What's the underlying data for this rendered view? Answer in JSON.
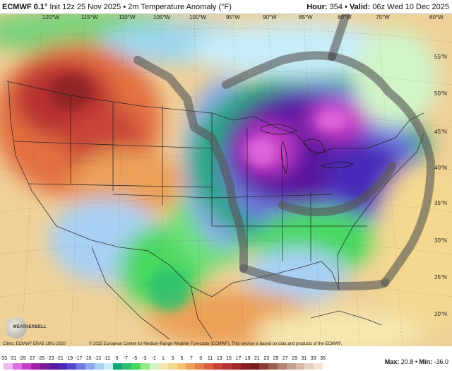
{
  "header": {
    "model": "ECMWF 0.1°",
    "init": "Init 12z 25 Nov 2025",
    "separator": "•",
    "product": "2m Temperature Anomaly (°F)",
    "hour_label": "Hour:",
    "hour_value": "354",
    "valid_label": "Valid:",
    "valid_value": "06z Wed 10 Dec 2025"
  },
  "map": {
    "longitude_labels": [
      "120°W",
      "115°W",
      "110°W",
      "105°W",
      "100°W",
      "95°W",
      "90°W",
      "85°W",
      "80°W",
      "75°W",
      "60°W"
    ],
    "latitude_labels": [
      "55°N",
      "50°N",
      "45°N",
      "40°N",
      "35°N",
      "30°N",
      "25°N",
      "20°N"
    ],
    "overlay_color": "#555555",
    "overlay_description": "hand-drawn dark gray annotation strokes"
  },
  "footer": {
    "climo": "Climo: ECMWF ERA5 1991-2020",
    "copyright": "© 2025 European Centre for Medium-Range Weather Forecasts (ECMWF). This service is based on data and products of the ECMWF.",
    "max_label": "Max:",
    "max_value": "20.8",
    "min_label": "Min:",
    "min_value": "-36.0"
  },
  "logo": {
    "text": "WEATHERBELL"
  },
  "legend": {
    "labels": [
      "-33",
      "-31",
      "-29",
      "-27",
      "-25",
      "-23",
      "-21",
      "-19",
      "-17",
      "-15",
      "-13",
      "-11",
      "-9",
      "-7",
      "-5",
      "-3",
      "-1",
      "1",
      "3",
      "5",
      "7",
      "9",
      "11",
      "13",
      "15",
      "17",
      "19",
      "21",
      "23",
      "25",
      "27",
      "29",
      "31",
      "33",
      "35"
    ],
    "colors": [
      "#f0b8f0",
      "#e070e0",
      "#c83cc8",
      "#a020a8",
      "#7a1a9a",
      "#5a18a0",
      "#4a2ab8",
      "#5848d0",
      "#7078e0",
      "#8ca8ee",
      "#a8d0f4",
      "#c8ecf8",
      "#10a878",
      "#28c070",
      "#48d860",
      "#90ea80",
      "#d0f4c8",
      "#f4e8b0",
      "#f4d890",
      "#f0c070",
      "#eca058",
      "#e48048",
      "#d86040",
      "#c84438",
      "#b83030",
      "#a02828",
      "#882020",
      "#781c1c",
      "#8c3c34",
      "#a06050",
      "#b48070",
      "#c8a090",
      "#d8b8a8",
      "#e8d0c0",
      "#f4e4d8"
    ]
  }
}
